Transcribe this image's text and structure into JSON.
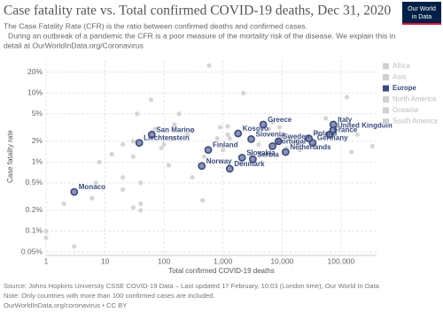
{
  "chart_data": {
    "type": "scatter",
    "title": "Case fatality rate vs. Total confirmed COVID-19 deaths, Dec 31, 2020",
    "subtitle": [
      "The Case Fatality Rate (CFR) is the ratio between confirmed deaths and confirmed cases.",
      "During an outbreak of a pandemic the CFR is a poor measure of the mortality risk of the disease. We explain this in",
      "detail at OurWorldInData.org/Coronavirus"
    ],
    "logo": [
      "Our World",
      "in Data"
    ],
    "x_label": "Total confirmed COVID-19 deaths",
    "y_label": "Case fatality rate",
    "footer": [
      "Source: Johns Hopkins University CSSE COVID-19 Data – Last updated 17 February, 10:03 (London time), Our World In Data",
      "Note: Only countries with more than 100 confirmed cases are included.",
      "OurWorldInData.org/coronavirus • CC BY"
    ],
    "log_x": true,
    "log_y": true,
    "grid": true,
    "legend": "right",
    "highlight": "Europe",
    "xlim": [
      1,
      400000
    ],
    "xticks": [
      1,
      10,
      100,
      {
        "value": 1000,
        "label": "1,000"
      },
      {
        "value": 10000,
        "label": "10,000"
      },
      {
        "value": 100000,
        "label": "100,000"
      }
    ],
    "ylim": [
      0.05,
      30
    ],
    "yticks": [
      {
        "value": 0.05,
        "label": "0.05%"
      },
      {
        "value": 0.1,
        "label": "0.1%"
      },
      {
        "value": 0.2,
        "label": "0.2%"
      },
      {
        "value": 0.5,
        "label": "0.5%"
      },
      {
        "value": 1,
        "label": "1%"
      },
      {
        "value": 2,
        "label": "2%"
      },
      {
        "value": 5,
        "label": "5%"
      },
      {
        "value": 10,
        "label": "10%"
      },
      {
        "value": 20,
        "label": "20%"
      }
    ],
    "series": [
      {
        "name": "Africa",
        "color": "#d0d0d0",
        "x": [
          60,
          70,
          140,
          30,
          250,
          1200,
          20,
          120,
          90,
          180,
          2200,
          40,
          6,
          480,
          300
        ],
        "values": [
          8,
          3,
          2.2,
          1.2,
          2.5,
          3.3,
          1.8,
          0.9,
          1.6,
          5,
          10,
          0.5,
          0.3,
          1.2,
          2.8
        ]
      },
      {
        "name": "Asia",
        "color": "#d0d0d0",
        "x": [
          40,
          300,
          1000,
          6000,
          12000,
          55000,
          150000,
          20,
          100,
          3,
          2000,
          4000,
          800,
          450,
          35,
          580
        ],
        "values": [
          0.2,
          0.6,
          1.5,
          3.0,
          1.6,
          4.3,
          1.4,
          0.6,
          1.8,
          0.06,
          1.0,
          1.8,
          2.2,
          0.28,
          5,
          25
        ]
      },
      {
        "name": "Europe",
        "color": "#3a4a7d",
        "x": [
          3,
          62,
          38,
          561,
          436,
          1800,
          3000,
          2100,
          3200,
          1300,
          4800,
          73500,
          74000,
          64000,
          33000,
          28500,
          8700,
          6900,
          11500
        ],
        "values": [
          0.37,
          2.5,
          1.9,
          1.5,
          0.88,
          2.6,
          2.15,
          1.16,
          1.1,
          0.8,
          3.5,
          2.9,
          3.5,
          2.5,
          1.9,
          2.2,
          2.0,
          1.7,
          1.4
        ],
        "labels": [
          "Monaco",
          "San Marino",
          "Liechtenstein",
          "Finland",
          "Norway",
          "Kosovo",
          "Slovenia",
          "Slovakia",
          "Serbia",
          "Denmark",
          "Greece",
          "United Kingdom",
          "Italy",
          "France",
          "Germany",
          "Poland",
          "Sweden",
          "Portugal",
          "Netherlands"
        ]
      },
      {
        "name": "North America",
        "color": "#d0d0d0",
        "x": [
          2,
          8,
          1,
          20,
          340000,
          20000,
          125000,
          7000,
          3000,
          150,
          30,
          13
        ],
        "values": [
          0.25,
          1.0,
          0.08,
          0.4,
          1.7,
          1.5,
          8.7,
          3.8,
          1.3,
          3.5,
          2,
          1.3
        ]
      },
      {
        "name": "Oceania",
        "color": "#d0d0d0",
        "x": [
          1,
          30,
          900,
          7
        ],
        "values": [
          0.1,
          0.22,
          3.2,
          0.5
        ]
      },
      {
        "name": "South America",
        "color": "#d0d0d0",
        "x": [
          190000,
          40000,
          10000,
          17000,
          9000,
          1200,
          1300,
          40
        ],
        "values": [
          2.5,
          2.6,
          2.3,
          2.0,
          3.2,
          2.5,
          2.2,
          0.25
        ]
      }
    ]
  }
}
